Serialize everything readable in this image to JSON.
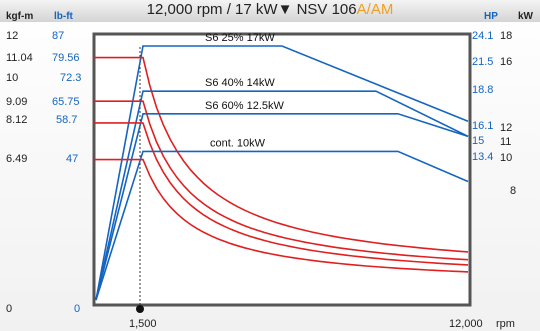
{
  "title": {
    "main": "12,000 rpm / 17 kW▼  NSV 106",
    "suffix_a": "A",
    "slash": "/",
    "suffix_am": "AM"
  },
  "left_axes": {
    "kgfm_label": "kgf-m",
    "lbft_label": "lb-ft",
    "kgfm_ticks": [
      "12",
      "11.04",
      "10",
      "9.09",
      "8.12",
      "6.49",
      "0"
    ],
    "lbft_ticks": [
      "87",
      "79.56",
      "72.3",
      "65.75",
      "58.7",
      "47",
      "0"
    ]
  },
  "right_axes": {
    "hp_label": "HP",
    "kw_label": "kW",
    "hp_ticks": [
      "24.1",
      "21.5",
      "18.8",
      "16.1",
      "15",
      "13.4"
    ],
    "kw_ticks": [
      "18",
      "16",
      "12",
      "11",
      "10",
      "8"
    ]
  },
  "x_axis": {
    "ticks": [
      "1,500",
      "12,000"
    ],
    "unit": "rpm"
  },
  "colors": {
    "power": "#1565c0",
    "torque": "#e02020",
    "frame": "#555555",
    "accent": "#f0a020"
  },
  "chart_data": {
    "type": "line",
    "title": "12,000 rpm / 17 kW NSV 106A/AM",
    "xlabel": "rpm",
    "x_range": [
      0,
      12000
    ],
    "base_speed_rpm": 1500,
    "series": [
      {
        "name": "S6 25% 17kW",
        "label": "S6  25% 17kW",
        "power_kw": 17,
        "torque_kgfm": 11.04,
        "torque_lbft": 79.56,
        "power_hp": [
          24.1,
          16.1
        ]
      },
      {
        "name": "S6 40% 14kW",
        "label": "S6  40% 14kW",
        "power_kw": 14,
        "torque_kgfm": 9.09,
        "torque_lbft": 65.75,
        "power_hp": [
          18.8,
          15
        ]
      },
      {
        "name": "S6 60% 12.5kW",
        "label": "S6  60% 12.5kW",
        "power_kw": 12.5,
        "torque_kgfm": 8.12,
        "torque_lbft": 58.7,
        "power_hp": [
          16.1,
          15
        ]
      },
      {
        "name": "cont. 10kW",
        "label": "cont. 10kW",
        "power_kw": 10,
        "torque_kgfm": 6.49,
        "torque_lbft": 47,
        "power_hp": [
          13.4,
          10
        ]
      }
    ],
    "power_breakpoints_rpm": [
      {
        "series": "S6 25% 17kW",
        "constant_until": 6000,
        "end_kw": 12
      },
      {
        "series": "S6 40% 14kW",
        "constant_until": 9000,
        "end_kw": 11
      },
      {
        "series": "S6 60% 12.5kW",
        "constant_until": 9700,
        "end_kw": 11
      },
      {
        "series": "cont. 10kW",
        "constant_until": 9700,
        "end_kw": 8
      }
    ]
  }
}
